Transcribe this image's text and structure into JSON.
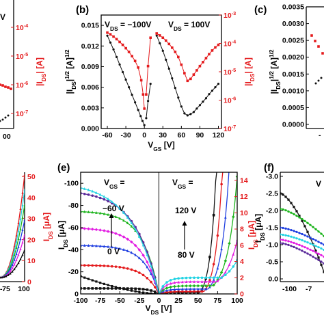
{
  "colors": {
    "black": "#111111",
    "red": "#e41a1c",
    "green": "#1db41d",
    "blue": "#1f3fe0",
    "cyan": "#22d3e3",
    "magenta": "#e21ce2",
    "purple": "#5a2a9a"
  },
  "chart_data": [
    {
      "id": "a",
      "panel_label": "",
      "type": "line",
      "partial": true,
      "right_axis_label": "|I_DS| [A]",
      "right_ticks_visible": [
        "10^-4",
        "10^-5",
        "10^-6",
        "10^-7"
      ],
      "x_tick_visible": "00"
    },
    {
      "id": "b",
      "panel_label": "(b)",
      "type": "line",
      "x": {
        "label": "V_GS [V]",
        "min": -70,
        "max": 125,
        "ticks": [
          -60,
          -30,
          0,
          30,
          60,
          90,
          120
        ]
      },
      "y_left": {
        "label": "|I_DS|^1/2 [A]^1/2",
        "min": 0,
        "max": 0.0165,
        "ticks": [
          0.0,
          0.003,
          0.006,
          0.009,
          0.012,
          0.015
        ]
      },
      "y_right": {
        "label": "|I_DS| [A]",
        "scale": "log",
        "min_exp": -7,
        "max_exp": -3
      },
      "annotations": [
        {
          "text": "V_DS = -100V"
        },
        {
          "text": "V_DS = 100V"
        }
      ],
      "series": [
        {
          "color": "black",
          "axis": "left",
          "marker": "circle",
          "x": [
            -60,
            -55,
            -50,
            -45,
            -40,
            -35,
            -30,
            -25,
            -20,
            -15,
            -10,
            -6,
            -3,
            0
          ],
          "y": [
            0.0135,
            0.0125,
            0.0115,
            0.0104,
            0.0093,
            0.0082,
            0.0071,
            0.006,
            0.0049,
            0.0038,
            0.0027,
            0.0018,
            0.0011,
            0.0005
          ]
        },
        {
          "color": "black",
          "axis": "left",
          "marker": "circle",
          "x": [
            3,
            6,
            10
          ],
          "y": [
            0.0015,
            0.004,
            0.0065
          ]
        },
        {
          "color": "black",
          "axis": "left",
          "marker": "circle",
          "x": [
            20,
            25,
            30,
            35,
            40,
            45,
            50,
            55,
            60,
            65,
            70,
            75,
            80,
            85,
            90,
            95,
            100,
            105,
            110,
            115,
            120
          ],
          "y": [
            0.0135,
            0.0124,
            0.0113,
            0.01,
            0.0087,
            0.0073,
            0.0059,
            0.0045,
            0.0032,
            0.0022,
            0.0019,
            0.0021,
            0.0024,
            0.0029,
            0.0034,
            0.0039,
            0.0044,
            0.005,
            0.0055,
            0.006,
            0.0065
          ]
        },
        {
          "color": "red",
          "axis": "right",
          "marker": "square",
          "x": [
            -60,
            -55,
            -50,
            -45,
            -40,
            -35,
            -30,
            -25,
            -20,
            -15,
            -10,
            -5,
            -2,
            0
          ],
          "y_exp": [
            -3.62,
            -3.68,
            -3.76,
            -3.85,
            -3.95,
            -4.05,
            -4.17,
            -4.3,
            -4.45,
            -4.62,
            -4.85,
            -5.3,
            -5.8,
            -6.3
          ]
        },
        {
          "color": "red",
          "axis": "right",
          "marker": "square",
          "x": [
            3,
            6,
            10
          ],
          "y_exp": [
            -5.8,
            -4.8,
            -3.8
          ]
        },
        {
          "color": "red",
          "axis": "right",
          "marker": "square",
          "x": [
            20,
            25,
            30,
            35,
            40,
            45,
            50,
            55,
            60,
            65,
            70,
            75,
            80,
            85,
            90,
            95,
            100,
            105,
            110,
            115,
            120
          ],
          "y_exp": [
            -3.65,
            -3.72,
            -3.8,
            -3.9,
            -4.02,
            -4.15,
            -4.3,
            -4.48,
            -4.75,
            -5.05,
            -5.32,
            -5.25,
            -5.1,
            -4.95,
            -4.8,
            -4.66,
            -4.52,
            -4.38,
            -4.25,
            -4.14,
            -4.05
          ]
        }
      ]
    },
    {
      "id": "c",
      "panel_label": "(c)",
      "type": "line",
      "partial": true,
      "y_left": {
        "label": "|I_DS|^1/2 [A]^1/2",
        "ticks": [
          "0.0035",
          "0.0030",
          "0.0025",
          "0.0020",
          "0.0015",
          "0.0010",
          "0.0005",
          "0.0000"
        ]
      },
      "x_tick_visible": "-"
    },
    {
      "id": "d",
      "panel_label": "",
      "type": "line",
      "partial": true,
      "y_right": {
        "label": "I_DS [μA]",
        "ticks": [
          0,
          10,
          20,
          30,
          40,
          50
        ]
      },
      "x_ticks_visible": [
        "75",
        "100"
      ],
      "tick_prefix": "-"
    },
    {
      "id": "e",
      "panel_label": "(e)",
      "type": "line",
      "x": {
        "label": "V_DS [V]",
        "min": -100,
        "max": 100,
        "ticks": [
          -100,
          -75,
          -50,
          -25,
          0,
          25,
          50,
          75,
          100
        ]
      },
      "y_left": {
        "label": "I_DS [μA]",
        "min": 0,
        "max": -110,
        "ticks": [
          0,
          -20,
          -40,
          -60,
          -80,
          -100
        ]
      },
      "y_right": {
        "label": "I_DS [μA]",
        "min": 0,
        "max": 15,
        "ticks": [
          0,
          2,
          4,
          6,
          8,
          10,
          12,
          14
        ]
      },
      "annotations": [
        {
          "text": "V_GS ="
        },
        {
          "text": "V_GS ="
        },
        {
          "text": "-60 V"
        },
        {
          "text": "0 V"
        },
        {
          "text": "120 V"
        },
        {
          "text": "80 V"
        }
      ],
      "left_series": [
        {
          "color": "black",
          "sat": 5,
          "vsat": 25
        },
        {
          "color": "red",
          "sat": 26,
          "vsat": 45
        },
        {
          "color": "blue",
          "sat": 44,
          "vsat": 45
        },
        {
          "color": "magenta",
          "sat": 60,
          "vsat": 55
        },
        {
          "color": "green",
          "sat": 75,
          "vsat": 50
        },
        {
          "color": "purple",
          "sat": 94,
          "vsat": 70
        },
        {
          "color": "cyan",
          "sat": 102,
          "vsat": 85
        }
      ],
      "left_residual": {
        "color": "black",
        "at_minus100": 16
      },
      "right_series": [
        {
          "color": "black",
          "x0": 53,
          "k": 0.016,
          "plateau": 0.2
        },
        {
          "color": "red",
          "x0": 58,
          "k": 0.014,
          "plateau": 0.3
        },
        {
          "color": "blue",
          "x0": 63,
          "k": 0.012,
          "plateau": 0.6
        },
        {
          "color": "green",
          "x0": 69,
          "k": 0.01,
          "plateau": 1.0
        },
        {
          "color": "magenta",
          "x0": 74,
          "k": 0.008,
          "plateau": 1.5
        },
        {
          "color": "cyan",
          "x0": 80,
          "k": 0.0065,
          "plateau": 2.0
        }
      ]
    },
    {
      "id": "f",
      "panel_label": "(f)",
      "type": "line",
      "partial": true,
      "y_left": {
        "label": "I_DS [μA]",
        "ticks": [
          "-3.0",
          "-2.5",
          "-2.0",
          "-1.5",
          "-1.0",
          "-0.5",
          "0.0"
        ]
      },
      "x_ticks_visible": [
        "-100",
        "-7"
      ],
      "annotation": "V"
    }
  ]
}
